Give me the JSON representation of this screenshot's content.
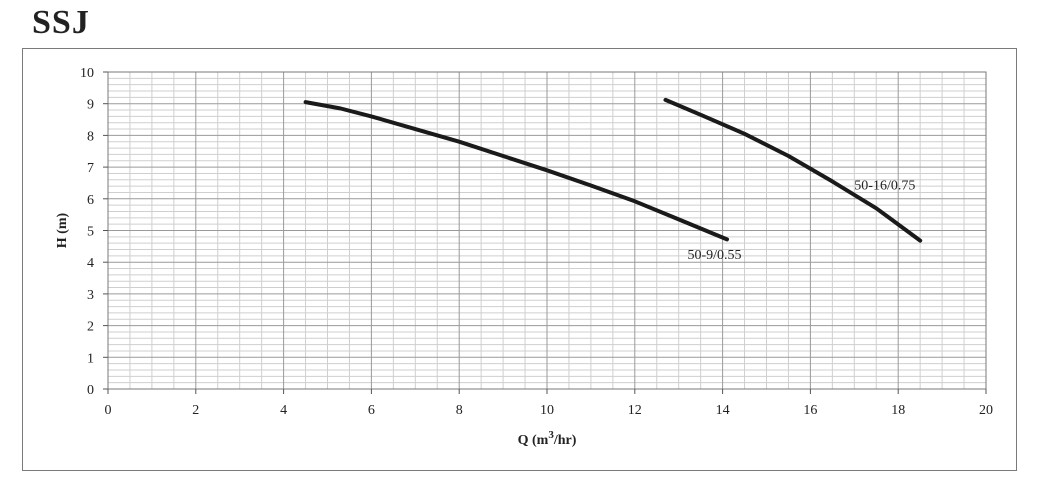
{
  "brand": "SSJ",
  "chart_data": {
    "type": "line",
    "xlabel": "Q (m",
    "xlabel_sup": "3",
    "xlabel_tail": "/hr)",
    "ylabel": "H (m)",
    "xlim": [
      0,
      20
    ],
    "ylim": [
      0,
      10
    ],
    "x_ticks": [
      0,
      2,
      4,
      6,
      8,
      10,
      12,
      14,
      16,
      18,
      20
    ],
    "y_ticks": [
      0,
      1,
      2,
      3,
      4,
      5,
      6,
      7,
      8,
      9,
      10
    ],
    "grid": true,
    "series": [
      {
        "name": "50-9/0.55",
        "color": "#1a1a1a",
        "points": [
          [
            4.5,
            9.05
          ],
          [
            5.3,
            8.85
          ],
          [
            6.0,
            8.6
          ],
          [
            7.0,
            8.2
          ],
          [
            8.0,
            7.8
          ],
          [
            9.0,
            7.35
          ],
          [
            10.0,
            6.9
          ],
          [
            11.0,
            6.42
          ],
          [
            12.0,
            5.92
          ],
          [
            13.0,
            5.35
          ],
          [
            14.1,
            4.72
          ]
        ]
      },
      {
        "name": "50-16/0.75",
        "color": "#1a1a1a",
        "points": [
          [
            12.7,
            9.12
          ],
          [
            13.5,
            8.65
          ],
          [
            14.5,
            8.05
          ],
          [
            15.5,
            7.35
          ],
          [
            16.5,
            6.55
          ],
          [
            17.5,
            5.7
          ],
          [
            18.5,
            4.68
          ]
        ]
      }
    ],
    "annotations": [
      {
        "text": "50-16/0.75",
        "at": [
          17.0,
          6.3
        ]
      },
      {
        "text": "50-9/0.55",
        "at": [
          13.2,
          4.1
        ]
      }
    ]
  }
}
